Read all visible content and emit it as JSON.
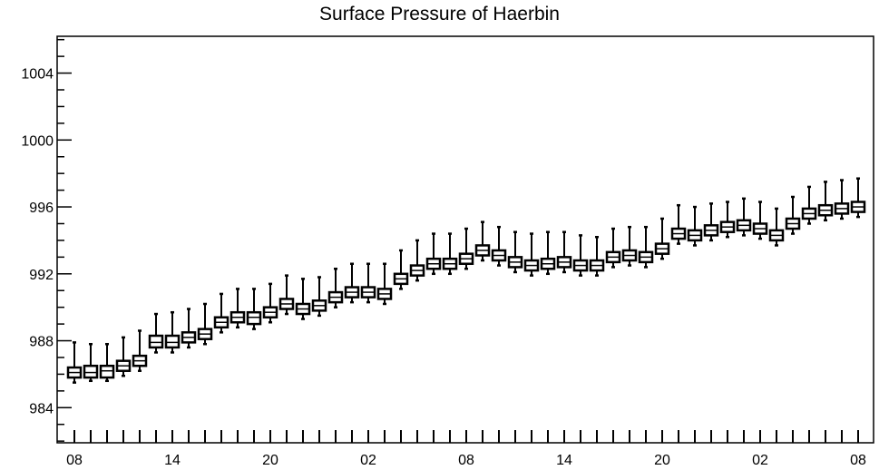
{
  "chart_data": {
    "type": "boxplot",
    "title": "Surface Pressure of Haerbin",
    "xlabel": "",
    "ylabel": "",
    "ylim": [
      981.9,
      1006.2
    ],
    "yticks": [
      984,
      988,
      992,
      996,
      1000,
      1004
    ],
    "ytick_labels": [
      "984",
      "988",
      "992",
      "996",
      "1000",
      "1004"
    ],
    "xtick_labels": [
      "08",
      "14",
      "20",
      "02",
      "08",
      "14",
      "20",
      "02",
      "08"
    ],
    "xtick_label_steps": [
      0,
      6,
      12,
      18,
      24,
      30,
      36,
      42,
      48
    ],
    "steps": [
      0,
      1,
      2,
      3,
      4,
      5,
      6,
      7,
      8,
      9,
      10,
      11,
      12,
      13,
      14,
      15,
      16,
      17,
      18,
      19,
      20,
      21,
      22,
      23,
      24,
      25,
      26,
      27,
      28,
      29,
      30,
      31,
      32,
      33,
      34,
      35,
      36,
      37,
      38,
      39,
      40,
      41,
      42,
      43,
      44,
      45,
      46,
      47,
      48
    ],
    "series": [
      {
        "median": [
          986.1,
          986.1,
          986.2,
          986.5,
          986.8,
          987.9,
          987.9,
          988.2,
          988.4,
          989.1,
          989.4,
          989.4,
          989.7,
          990.2,
          989.9,
          990.1,
          990.6,
          990.9,
          990.9,
          990.8,
          991.7,
          992.2,
          992.6,
          992.6,
          992.9,
          993.4,
          993.1,
          992.7,
          992.5,
          992.6,
          992.7,
          992.5,
          992.5,
          993.0,
          993.1,
          993.0,
          993.5,
          994.4,
          994.3,
          994.6,
          994.8,
          994.9,
          994.7,
          994.3,
          995.0,
          995.6,
          995.8,
          995.9,
          996.0
        ],
        "q1": [
          985.8,
          985.8,
          985.8,
          986.2,
          986.5,
          987.6,
          987.6,
          987.9,
          988.1,
          988.8,
          989.1,
          989.0,
          989.4,
          989.9,
          989.6,
          989.8,
          990.3,
          990.6,
          990.6,
          990.5,
          991.4,
          991.9,
          992.3,
          992.3,
          992.6,
          993.1,
          992.8,
          992.4,
          992.2,
          992.3,
          992.4,
          992.2,
          992.2,
          992.7,
          992.8,
          992.7,
          993.2,
          994.1,
          994.0,
          994.3,
          994.5,
          994.6,
          994.4,
          994.0,
          994.7,
          995.3,
          995.5,
          995.6,
          995.7
        ],
        "q3": [
          986.4,
          986.5,
          986.5,
          986.8,
          987.1,
          988.3,
          988.3,
          988.5,
          988.7,
          989.4,
          989.7,
          989.7,
          990.0,
          990.5,
          990.2,
          990.4,
          990.9,
          991.2,
          991.2,
          991.1,
          992.0,
          992.5,
          992.9,
          992.9,
          993.2,
          993.7,
          993.4,
          993.0,
          992.8,
          992.9,
          993.0,
          992.8,
          992.8,
          993.3,
          993.4,
          993.3,
          993.8,
          994.7,
          994.6,
          994.9,
          995.1,
          995.2,
          995.0,
          994.6,
          995.3,
          995.9,
          996.1,
          996.2,
          996.3
        ],
        "whisker_low": [
          985.5,
          985.6,
          985.6,
          985.9,
          986.2,
          987.3,
          987.3,
          987.6,
          987.8,
          988.5,
          988.8,
          988.7,
          989.1,
          989.6,
          989.3,
          989.5,
          990.0,
          990.3,
          990.3,
          990.2,
          991.1,
          991.6,
          992.0,
          992.0,
          992.3,
          992.8,
          992.5,
          992.1,
          991.9,
          992.0,
          992.1,
          991.9,
          991.9,
          992.4,
          992.5,
          992.4,
          992.9,
          993.8,
          993.7,
          994.0,
          994.2,
          994.3,
          994.1,
          993.7,
          994.4,
          995.0,
          995.2,
          995.3,
          995.4
        ],
        "whisker_high": [
          987.9,
          987.8,
          987.8,
          988.2,
          988.6,
          989.6,
          989.7,
          989.9,
          990.2,
          990.8,
          991.1,
          991.1,
          991.4,
          991.9,
          991.7,
          991.8,
          992.3,
          992.6,
          992.6,
          992.6,
          993.4,
          994.0,
          994.4,
          994.4,
          994.7,
          995.1,
          994.8,
          994.5,
          994.4,
          994.5,
          994.5,
          994.3,
          994.2,
          994.7,
          994.8,
          994.8,
          995.3,
          996.1,
          996.0,
          996.2,
          996.3,
          996.5,
          996.3,
          995.9,
          996.6,
          997.2,
          997.5,
          997.6,
          997.7
        ]
      }
    ],
    "grid": false,
    "legend": "none"
  }
}
